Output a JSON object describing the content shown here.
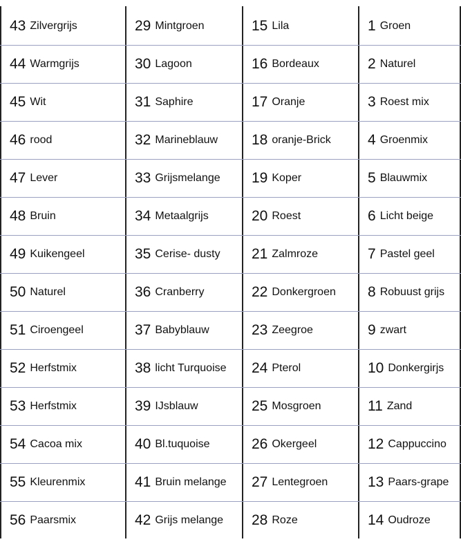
{
  "table": {
    "rows": [
      [
        {
          "number": "43",
          "name": "Zilvergrijs"
        },
        {
          "number": "29",
          "name": "Mintgroen"
        },
        {
          "number": "15",
          "name": "Lila"
        },
        {
          "number": "1",
          "name": "Groen"
        }
      ],
      [
        {
          "number": "44",
          "name": "Warmgrijs"
        },
        {
          "number": "30",
          "name": "Lagoon"
        },
        {
          "number": "16",
          "name": "Bordeaux"
        },
        {
          "number": "2",
          "name": "Naturel"
        }
      ],
      [
        {
          "number": "45",
          "name": "Wit"
        },
        {
          "number": "31",
          "name": "Saphire"
        },
        {
          "number": "17",
          "name": "Oranje"
        },
        {
          "number": "3",
          "name": "Roest mix"
        }
      ],
      [
        {
          "number": "46",
          "name": "rood"
        },
        {
          "number": "32",
          "name": "Marineblauw"
        },
        {
          "number": "18",
          "name": "oranje-Brick"
        },
        {
          "number": "4",
          "name": "Groenmix"
        }
      ],
      [
        {
          "number": "47",
          "name": "Lever"
        },
        {
          "number": "33",
          "name": "Grijsmelange"
        },
        {
          "number": "19",
          "name": "Koper"
        },
        {
          "number": "5",
          "name": "Blauwmix"
        }
      ],
      [
        {
          "number": "48",
          "name": "Bruin"
        },
        {
          "number": "34",
          "name": "Metaalgrijs"
        },
        {
          "number": "20",
          "name": "Roest"
        },
        {
          "number": "6",
          "name": "Licht beige"
        }
      ],
      [
        {
          "number": "49",
          "name": "Kuikengeel"
        },
        {
          "number": "35",
          "name": "Cerise- dusty"
        },
        {
          "number": "21",
          "name": "Zalmroze"
        },
        {
          "number": "7",
          "name": "Pastel geel"
        }
      ],
      [
        {
          "number": "50",
          "name": "Naturel"
        },
        {
          "number": "36",
          "name": "Cranberry"
        },
        {
          "number": "22",
          "name": "Donkergroen"
        },
        {
          "number": "8",
          "name": "Robuust grijs"
        }
      ],
      [
        {
          "number": "51",
          "name": "Ciroengeel"
        },
        {
          "number": "37",
          "name": "Babyblauw"
        },
        {
          "number": "23",
          "name": "Zeegroe"
        },
        {
          "number": "9",
          "name": "zwart"
        }
      ],
      [
        {
          "number": "52",
          "name": "Herfstmix"
        },
        {
          "number": "38",
          "name": "licht Turquoise"
        },
        {
          "number": "24",
          "name": "Pterol"
        },
        {
          "number": "10",
          "name": "Donkergirjs"
        }
      ],
      [
        {
          "number": "53",
          "name": "Herfstmix"
        },
        {
          "number": "39",
          "name": "IJsblauw"
        },
        {
          "number": "25",
          "name": "Mosgroen"
        },
        {
          "number": "11",
          "name": "Zand"
        }
      ],
      [
        {
          "number": "54",
          "name": "Cacoa mix"
        },
        {
          "number": "40",
          "name": "Bl.tuquoise"
        },
        {
          "number": "26",
          "name": "Okergeel"
        },
        {
          "number": "12",
          "name": "Cappuccino"
        }
      ],
      [
        {
          "number": "55",
          "name": "Kleurenmix"
        },
        {
          "number": "41",
          "name": "Bruin melange"
        },
        {
          "number": "27",
          "name": "Lentegroen"
        },
        {
          "number": "13",
          "name": "Paars-grape"
        }
      ],
      [
        {
          "number": "56",
          "name": "Paarsmix"
        },
        {
          "number": "42",
          "name": "Grijs melange"
        },
        {
          "number": "28",
          "name": "Roze"
        },
        {
          "number": "14",
          "name": "Oudroze"
        }
      ]
    ]
  }
}
